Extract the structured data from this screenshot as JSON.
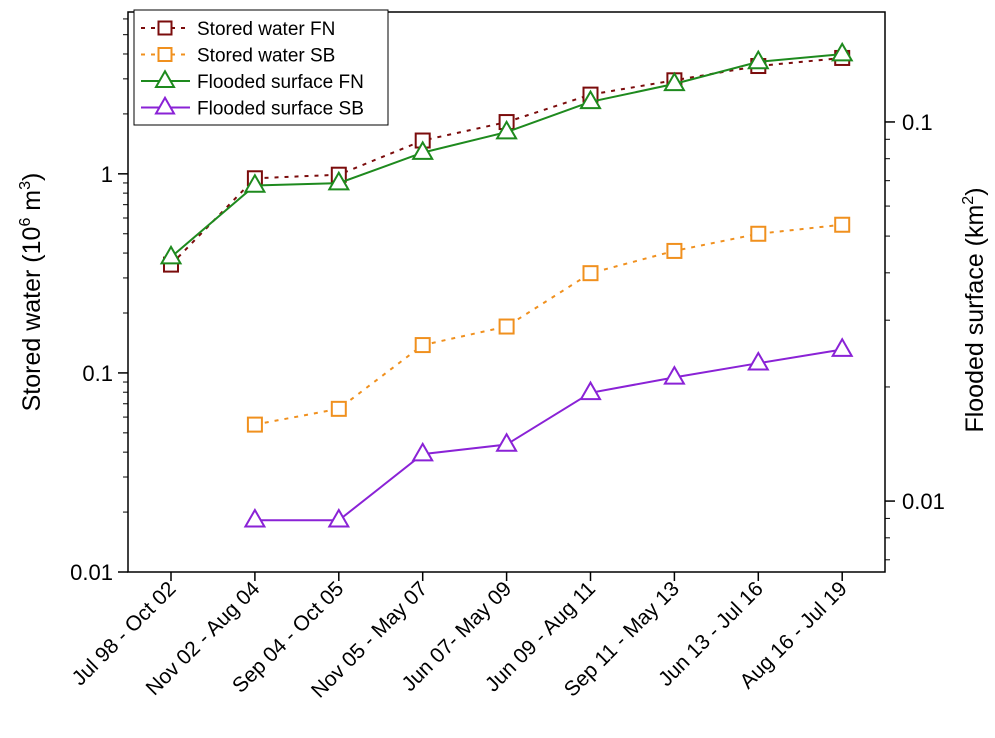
{
  "chart_data": {
    "type": "line",
    "categories": [
      "Jul 98 - Oct 02",
      "Nov 02 - Aug 04",
      "Sep 04 - Oct 05",
      "Nov 05 - May 07",
      "Jun 07- May 09",
      "Jun 09 - Aug 11",
      "Sep 11 - May 13",
      "Jun 13 - Jul 16",
      "Aug 16 - Jul 19"
    ],
    "y_left": {
      "label_main": "Stored water (10",
      "label_sup": "6",
      "label_unit": " m",
      "label_sup2": "3",
      "label_close": ")",
      "scale": "log",
      "lim": [
        0.01,
        6.5
      ],
      "ticks": [
        0.01,
        0.1,
        1
      ],
      "tick_labels": [
        "0.01",
        "0.1",
        "1"
      ]
    },
    "y_right": {
      "label_main": "Flooded surface (km",
      "label_sup": "2",
      "label_close": ")",
      "scale": "log",
      "lim": [
        0.0065,
        0.195
      ],
      "ticks": [
        0.01,
        0.1
      ],
      "tick_labels": [
        "0.01",
        "0.1"
      ]
    },
    "series": [
      {
        "name": "Stored water FN",
        "axis": "left",
        "marker": "square",
        "line": "dotted",
        "color": "#7b0c0c",
        "values": [
          0.35,
          0.95,
          0.99,
          1.47,
          1.82,
          2.5,
          2.95,
          3.48,
          3.82
        ]
      },
      {
        "name": "Stored water SB",
        "axis": "left",
        "marker": "square",
        "line": "dotted",
        "color": "#f0901e",
        "values": [
          null,
          0.055,
          0.066,
          0.138,
          0.171,
          0.317,
          0.41,
          0.5,
          0.555
        ]
      },
      {
        "name": "Flooded surface FN",
        "axis": "right",
        "marker": "triangle",
        "line": "solid",
        "color": "#1e8a1e",
        "values": [
          0.044,
          0.068,
          0.069,
          0.083,
          0.094,
          0.113,
          0.126,
          0.144,
          0.151
        ]
      },
      {
        "name": "Flooded surface SB",
        "axis": "right",
        "marker": "triangle",
        "line": "solid",
        "color": "#8a22d6",
        "values": [
          null,
          0.0089,
          0.0089,
          0.0133,
          0.0141,
          0.0193,
          0.0212,
          0.0231,
          0.0251
        ]
      }
    ],
    "legend_position": "top-left",
    "grid": false
  }
}
